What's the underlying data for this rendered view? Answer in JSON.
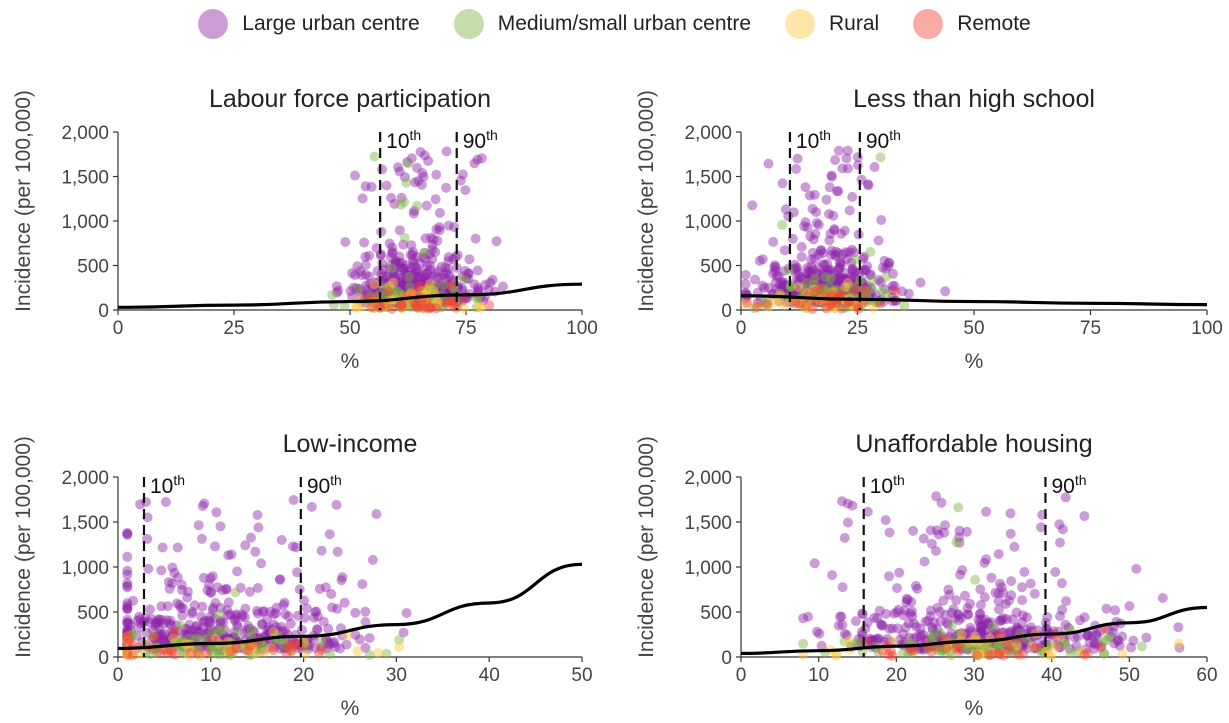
{
  "legend": [
    {
      "label": "Large urban centre",
      "color": "#8e24aa"
    },
    {
      "label": "Medium/small urban centre",
      "color": "#7cb342"
    },
    {
      "label": "Rural",
      "color": "#ffc83d"
    },
    {
      "label": "Remote",
      "color": "#f44336"
    }
  ],
  "chart_data": [
    {
      "type": "scatter",
      "title": "Labour force participation",
      "xlabel": "%",
      "ylabel": "Incidence (per 100,000)",
      "xlim": [
        0,
        100
      ],
      "ylim": [
        0,
        2000
      ],
      "xticks": [
        0,
        25,
        50,
        75,
        100
      ],
      "yticks": [
        0,
        500,
        1000,
        1500,
        2000
      ],
      "xtick_labels": [
        "0",
        "25",
        "50",
        "75",
        "100"
      ],
      "ytick_labels": [
        "0",
        "500",
        "1,000",
        "1,500",
        "2,000"
      ],
      "percentile_lines": [
        {
          "x": 56.5,
          "label": "10",
          "sup": "th"
        },
        {
          "x": 73,
          "label": "90",
          "sup": "th"
        }
      ],
      "trend": {
        "x": [
          0,
          25,
          50,
          75,
          100
        ],
        "y": [
          30,
          55,
          95,
          170,
          290
        ]
      },
      "cloud": {
        "center": 64,
        "spread": 6.5,
        "xmin": 35,
        "xmax": 90
      },
      "series": [
        {
          "name": "Large urban centre",
          "n": 420
        },
        {
          "name": "Medium/small urban centre",
          "n": 90
        },
        {
          "name": "Rural",
          "n": 35
        },
        {
          "name": "Remote",
          "n": 35
        }
      ]
    },
    {
      "type": "scatter",
      "title": "Less than high school",
      "xlabel": "%",
      "ylabel": "Incidence (per 100,000)",
      "xlim": [
        0,
        100
      ],
      "ylim": [
        0,
        2000
      ],
      "xticks": [
        0,
        25,
        50,
        75,
        100
      ],
      "yticks": [
        0,
        500,
        1000,
        1500,
        2000
      ],
      "xtick_labels": [
        "0",
        "25",
        "50",
        "75",
        "100"
      ],
      "ytick_labels": [
        "0",
        "500",
        "1,000",
        "1,500",
        "2,000"
      ],
      "percentile_lines": [
        {
          "x": 10.5,
          "label": "10",
          "sup": "th"
        },
        {
          "x": 25.5,
          "label": "90",
          "sup": "th"
        }
      ],
      "trend": {
        "x": [
          0,
          25,
          50,
          75,
          100
        ],
        "y": [
          160,
          120,
          95,
          75,
          60
        ]
      },
      "cloud": {
        "center": 18,
        "spread": 7,
        "xmin": 1,
        "xmax": 46
      },
      "series": [
        {
          "name": "Large urban centre",
          "n": 420
        },
        {
          "name": "Medium/small urban centre",
          "n": 90
        },
        {
          "name": "Rural",
          "n": 35
        },
        {
          "name": "Remote",
          "n": 35
        }
      ]
    },
    {
      "type": "scatter",
      "title": "Low-income",
      "xlabel": "%",
      "ylabel": "Incidence (per 100,000)",
      "xlim": [
        0,
        50
      ],
      "ylim": [
        0,
        2000
      ],
      "xticks": [
        0,
        10,
        20,
        30,
        40,
        50
      ],
      "yticks": [
        0,
        500,
        1000,
        1500,
        2000
      ],
      "xtick_labels": [
        "0",
        "10",
        "20",
        "30",
        "40",
        "50"
      ],
      "ytick_labels": [
        "0",
        "500",
        "1,000",
        "1,500",
        "2,000"
      ],
      "percentile_lines": [
        {
          "x": 2.8,
          "label": "10",
          "sup": "th"
        },
        {
          "x": 19.7,
          "label": "90",
          "sup": "th"
        }
      ],
      "trend": {
        "x": [
          0,
          10,
          20,
          30,
          40,
          50
        ],
        "y": [
          95,
          150,
          230,
          360,
          600,
          1030
        ]
      },
      "cloud": {
        "center": 11,
        "spread": 7,
        "xmin": 1,
        "xmax": 47
      },
      "series": [
        {
          "name": "Large urban centre",
          "n": 420
        },
        {
          "name": "Medium/small urban centre",
          "n": 90
        },
        {
          "name": "Rural",
          "n": 35
        },
        {
          "name": "Remote",
          "n": 35
        }
      ]
    },
    {
      "type": "scatter",
      "title": "Unaffordable housing",
      "xlabel": "%",
      "ylabel": "Incidence (per 100,000)",
      "xlim": [
        0,
        60
      ],
      "ylim": [
        0,
        2000
      ],
      "xticks": [
        0,
        10,
        20,
        30,
        40,
        50,
        60
      ],
      "yticks": [
        0,
        500,
        1000,
        1500,
        2000
      ],
      "xtick_labels": [
        "0",
        "10",
        "20",
        "30",
        "40",
        "50",
        "60"
      ],
      "ytick_labels": [
        "0",
        "500",
        "1,000",
        "1,500",
        "2,000"
      ],
      "percentile_lines": [
        {
          "x": 15.8,
          "label": "10",
          "sup": "th"
        },
        {
          "x": 39.2,
          "label": "90",
          "sup": "th"
        }
      ],
      "trend": {
        "x": [
          0,
          10,
          20,
          30,
          40,
          50,
          60
        ],
        "y": [
          40,
          70,
          120,
          175,
          255,
          380,
          550
        ]
      },
      "cloud": {
        "center": 30,
        "spread": 9,
        "xmin": 8,
        "xmax": 59
      },
      "series": [
        {
          "name": "Large urban centre",
          "n": 420
        },
        {
          "name": "Medium/small urban centre",
          "n": 90
        },
        {
          "name": "Rural",
          "n": 35
        },
        {
          "name": "Remote",
          "n": 35
        }
      ]
    }
  ]
}
